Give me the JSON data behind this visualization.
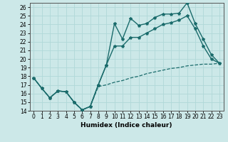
{
  "xlabel": "Humidex (Indice chaleur)",
  "xlim": [
    -0.5,
    23.5
  ],
  "ylim": [
    14,
    26.5
  ],
  "yticks": [
    14,
    15,
    16,
    17,
    18,
    19,
    20,
    21,
    22,
    23,
    24,
    25,
    26
  ],
  "xticks": [
    0,
    1,
    2,
    3,
    4,
    5,
    6,
    7,
    8,
    9,
    10,
    11,
    12,
    13,
    14,
    15,
    16,
    17,
    18,
    19,
    20,
    21,
    22,
    23
  ],
  "bg_color": "#cce8e8",
  "line_color": "#1a6b6b",
  "line1_x": [
    0,
    1,
    2,
    3,
    4,
    5,
    6,
    7,
    8,
    9,
    10,
    11,
    12,
    13,
    14,
    15,
    16,
    17,
    18,
    19,
    20,
    21,
    22,
    23
  ],
  "line1_y": [
    17.8,
    16.6,
    15.5,
    16.3,
    16.2,
    15.0,
    14.1,
    14.5,
    17.0,
    19.3,
    24.1,
    22.3,
    24.7,
    23.9,
    24.1,
    24.8,
    25.2,
    25.2,
    25.3,
    26.5,
    24.1,
    22.3,
    20.5,
    19.5
  ],
  "line2_x": [
    0,
    1,
    2,
    3,
    4,
    5,
    6,
    7,
    8,
    9,
    10,
    11,
    12,
    13,
    14,
    15,
    16,
    17,
    18,
    19,
    20,
    21,
    22,
    23
  ],
  "line2_y": [
    17.8,
    16.6,
    15.5,
    16.3,
    16.2,
    15.0,
    14.1,
    14.5,
    17.0,
    19.3,
    21.5,
    21.5,
    22.5,
    22.5,
    23.0,
    23.5,
    24.0,
    24.2,
    24.5,
    25.0,
    23.5,
    21.5,
    20.0,
    19.5
  ],
  "line3_x": [
    0,
    1,
    2,
    3,
    4,
    5,
    6,
    7,
    8,
    9,
    10,
    11,
    12,
    13,
    14,
    15,
    16,
    17,
    18,
    19,
    20,
    21,
    22,
    23
  ],
  "line3_y": [
    17.8,
    16.6,
    15.5,
    16.3,
    16.2,
    15.0,
    14.1,
    14.5,
    16.8,
    17.0,
    17.3,
    17.5,
    17.8,
    18.0,
    18.3,
    18.5,
    18.7,
    18.9,
    19.0,
    19.2,
    19.3,
    19.4,
    19.4,
    19.5
  ],
  "grid_color": "#b0d8d8",
  "tick_fontsize": 5.5,
  "xlabel_fontsize": 6.5
}
